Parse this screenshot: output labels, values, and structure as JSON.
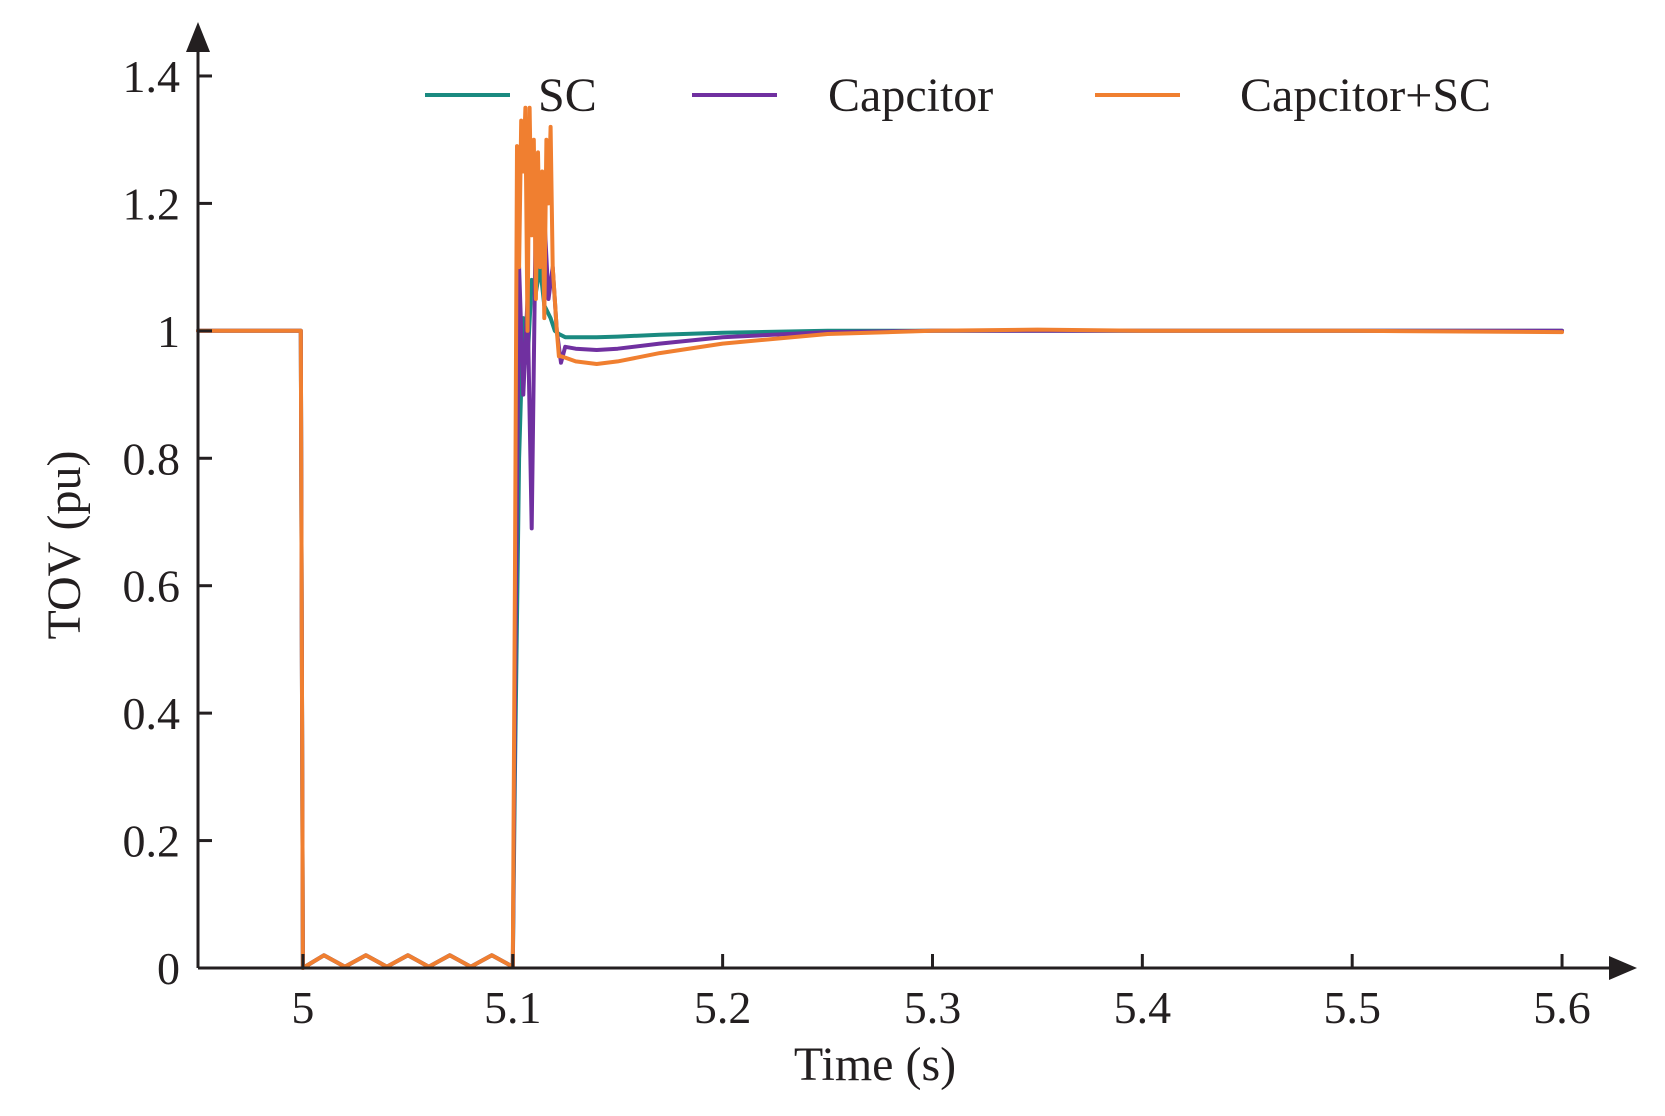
{
  "chart_data": {
    "type": "line",
    "xlabel": "Time (s)",
    "ylabel": "TOV (pu)",
    "xlim": [
      4.95,
      5.63
    ],
    "ylim": [
      0,
      1.48
    ],
    "xticks": [
      5,
      5.1,
      5.2,
      5.3,
      5.4,
      5.5,
      5.6
    ],
    "xtick_labels": [
      "5",
      "5.1",
      "5.2",
      "5.3",
      "5.4",
      "5.5",
      "5.6"
    ],
    "yticks": [
      0,
      0.2,
      0.4,
      0.6,
      0.8,
      1,
      1.2,
      1.4
    ],
    "ytick_labels": [
      "0",
      "0.2",
      "0.4",
      "0.6",
      "0.8",
      "1",
      "1.2",
      "1.4"
    ],
    "legend_position": "top",
    "series": [
      {
        "name": "SC",
        "color": "#1a8a80",
        "x": [
          4.95,
          4.999,
          5.0,
          5.01,
          5.02,
          5.03,
          5.04,
          5.05,
          5.06,
          5.07,
          5.08,
          5.09,
          5.1,
          5.101,
          5.103,
          5.105,
          5.107,
          5.109,
          5.111,
          5.113,
          5.115,
          5.118,
          5.12,
          5.122,
          5.125,
          5.13,
          5.14,
          5.15,
          5.17,
          5.2,
          5.25,
          5.3,
          5.4,
          5.5,
          5.6
        ],
        "y": [
          1,
          1,
          0,
          0.02,
          0.002,
          0.02,
          0.002,
          0.02,
          0.002,
          0.02,
          0.002,
          0.02,
          0.002,
          0.3,
          0.8,
          1.02,
          0.95,
          1.08,
          1.06,
          1.1,
          1.04,
          1.02,
          1.0,
          0.995,
          0.99,
          0.99,
          0.99,
          0.991,
          0.994,
          0.997,
          1.0,
          1.0,
          1.0,
          1.0,
          1.0
        ]
      },
      {
        "name": "Capcitor",
        "color": "#7030a0",
        "x": [
          4.95,
          4.999,
          5.0,
          5.01,
          5.02,
          5.03,
          5.04,
          5.05,
          5.06,
          5.07,
          5.08,
          5.09,
          5.1,
          5.101,
          5.103,
          5.105,
          5.107,
          5.109,
          5.111,
          5.113,
          5.115,
          5.117,
          5.119,
          5.121,
          5.123,
          5.125,
          5.13,
          5.14,
          5.15,
          5.17,
          5.2,
          5.25,
          5.3,
          5.4,
          5.5,
          5.6
        ],
        "y": [
          1,
          1,
          0,
          0.02,
          0.002,
          0.02,
          0.002,
          0.02,
          0.002,
          0.02,
          0.002,
          0.02,
          0.002,
          0.4,
          1.1,
          0.9,
          1.05,
          0.69,
          1.2,
          1.1,
          1.18,
          1.05,
          1.1,
          1.0,
          0.95,
          0.975,
          0.972,
          0.97,
          0.972,
          0.98,
          0.99,
          0.998,
          1.0,
          1.0,
          1.0,
          1.0
        ]
      },
      {
        "name": "Capcitor+SC",
        "color": "#f07f30",
        "x": [
          4.95,
          4.999,
          5.0,
          5.01,
          5.02,
          5.03,
          5.04,
          5.05,
          5.06,
          5.07,
          5.08,
          5.09,
          5.1,
          5.101,
          5.102,
          5.103,
          5.104,
          5.105,
          5.106,
          5.107,
          5.108,
          5.109,
          5.11,
          5.111,
          5.112,
          5.113,
          5.114,
          5.115,
          5.116,
          5.117,
          5.118,
          5.119,
          5.12,
          5.121,
          5.122,
          5.123,
          5.125,
          5.13,
          5.14,
          5.15,
          5.17,
          5.2,
          5.25,
          5.3,
          5.35,
          5.4,
          5.5,
          5.6
        ],
        "y": [
          1,
          1,
          0,
          0.02,
          0.002,
          0.02,
          0.002,
          0.02,
          0.002,
          0.02,
          0.002,
          0.02,
          0.002,
          0.6,
          1.29,
          1.1,
          1.33,
          1.25,
          1.35,
          1.0,
          1.35,
          1.15,
          1.3,
          1.05,
          1.28,
          1.1,
          1.25,
          1.02,
          1.3,
          1.2,
          1.32,
          1.1,
          1.05,
          1.0,
          0.96,
          0.96,
          0.958,
          0.952,
          0.948,
          0.952,
          0.965,
          0.98,
          0.995,
          1.0,
          1.002,
          1.0,
          1.0,
          0.998
        ]
      }
    ]
  }
}
